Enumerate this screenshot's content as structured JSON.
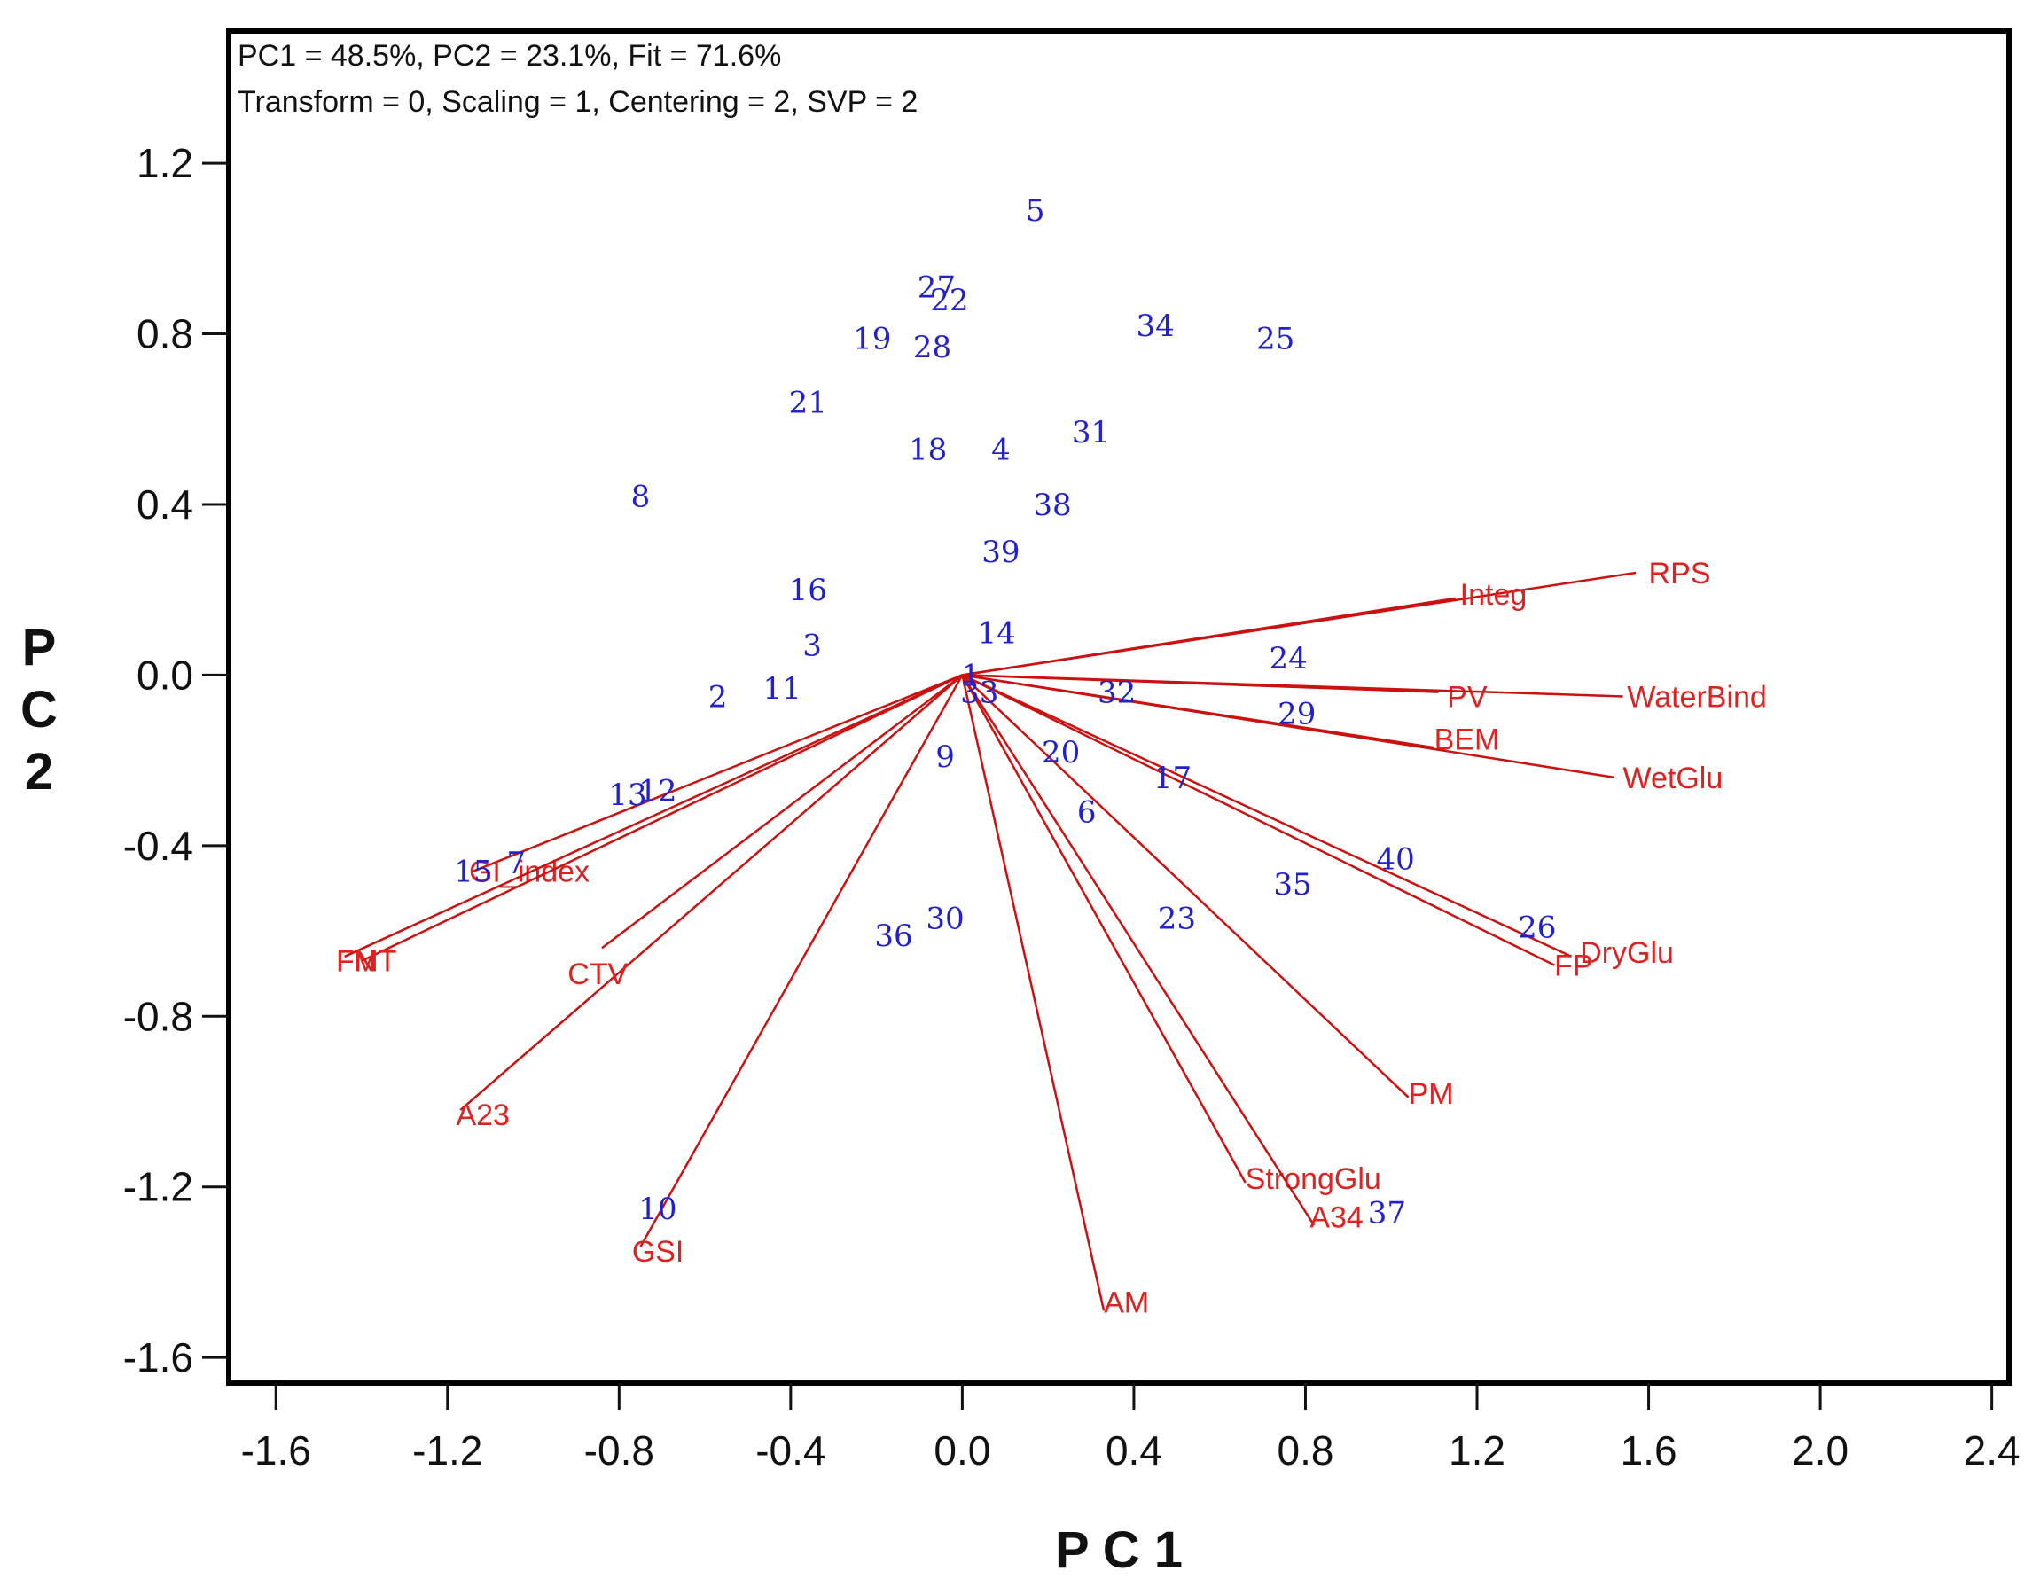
{
  "chart_data": {
    "type": "scatter",
    "subtype": "biplot",
    "header": [
      "PC1 = 48.5%, PC2 = 23.1%, Fit = 71.6%",
      "Transform = 0, Scaling = 1, Centering = 2, SVP = 2"
    ],
    "xlabel": "P C 1",
    "ylabel": [
      "P",
      "C",
      "2"
    ],
    "xlim": [
      -1.71,
      2.44
    ],
    "ylim": [
      -1.66,
      1.51
    ],
    "xticks": [
      -1.6,
      -1.2,
      -0.8,
      -0.4,
      0.0,
      0.4,
      0.8,
      1.2,
      1.6,
      2.0,
      2.4
    ],
    "yticks": [
      1.2,
      0.8,
      0.4,
      0.0,
      -0.4,
      -0.8,
      -1.2,
      -1.6
    ],
    "xtick_labels": [
      "-1.6",
      "-1.2",
      "-0.8",
      "-0.4",
      "0.0",
      "0.4",
      "0.8",
      "1.2",
      "1.6",
      "2.0",
      "2.4"
    ],
    "ytick_labels": [
      "1.2",
      "0.8",
      "0.4",
      "0.0",
      "-0.4",
      "-0.8",
      "-1.2",
      "-1.6"
    ],
    "colors": {
      "observations": "#2222cc",
      "vectors": "#cc1111",
      "variable_labels": "#dd2222",
      "frame": "#000000"
    },
    "observations": [
      {
        "label": "1",
        "x": 0.02,
        "y": 0.0
      },
      {
        "label": "2",
        "x": -0.57,
        "y": -0.05
      },
      {
        "label": "3",
        "x": -0.35,
        "y": 0.07
      },
      {
        "label": "4",
        "x": 0.09,
        "y": 0.53
      },
      {
        "label": "5",
        "x": 0.17,
        "y": 1.09
      },
      {
        "label": "6",
        "x": 0.29,
        "y": -0.32
      },
      {
        "label": "7",
        "x": -1.04,
        "y": -0.44
      },
      {
        "label": "8",
        "x": -0.75,
        "y": 0.42
      },
      {
        "label": "9",
        "x": -0.04,
        "y": -0.19
      },
      {
        "label": "10",
        "x": -0.71,
        "y": -1.25
      },
      {
        "label": "11",
        "x": -0.42,
        "y": -0.03
      },
      {
        "label": "12",
        "x": -0.71,
        "y": -0.27
      },
      {
        "label": "13",
        "x": -0.78,
        "y": -0.28
      },
      {
        "label": "14",
        "x": 0.08,
        "y": 0.1
      },
      {
        "label": "15",
        "x": -1.14,
        "y": -0.46
      },
      {
        "label": "16",
        "x": -0.36,
        "y": 0.2
      },
      {
        "label": "17",
        "x": 0.49,
        "y": -0.24
      },
      {
        "label": "18",
        "x": -0.08,
        "y": 0.53
      },
      {
        "label": "19",
        "x": -0.21,
        "y": 0.79
      },
      {
        "label": "20",
        "x": 0.23,
        "y": -0.18
      },
      {
        "label": "21",
        "x": -0.36,
        "y": 0.64
      },
      {
        "label": "22",
        "x": -0.03,
        "y": 0.88
      },
      {
        "label": "23",
        "x": 0.5,
        "y": -0.57
      },
      {
        "label": "24",
        "x": 0.76,
        "y": 0.04
      },
      {
        "label": "25",
        "x": 0.73,
        "y": 0.79
      },
      {
        "label": "26",
        "x": 1.34,
        "y": -0.59
      },
      {
        "label": "27",
        "x": -0.06,
        "y": 0.91
      },
      {
        "label": "28",
        "x": -0.07,
        "y": 0.77
      },
      {
        "label": "29",
        "x": 0.78,
        "y": -0.09
      },
      {
        "label": "30",
        "x": -0.04,
        "y": -0.57
      },
      {
        "label": "31",
        "x": 0.3,
        "y": 0.57
      },
      {
        "label": "32",
        "x": 0.36,
        "y": -0.04
      },
      {
        "label": "33",
        "x": 0.04,
        "y": -0.04
      },
      {
        "label": "34",
        "x": 0.45,
        "y": 0.82
      },
      {
        "label": "35",
        "x": 0.77,
        "y": -0.49
      },
      {
        "label": "36",
        "x": -0.16,
        "y": -0.61
      },
      {
        "label": "37",
        "x": 0.99,
        "y": -1.26
      },
      {
        "label": "38",
        "x": 0.21,
        "y": 0.4
      },
      {
        "label": "39",
        "x": 0.09,
        "y": 0.29
      },
      {
        "label": "40",
        "x": 1.01,
        "y": -0.43
      }
    ],
    "vectors": [
      {
        "label": "RPS",
        "x": 1.57,
        "y": 0.24,
        "lx": 1.6,
        "ly": 0.24
      },
      {
        "label": "Integ",
        "x": 1.15,
        "y": 0.18,
        "lx": 1.16,
        "ly": 0.19
      },
      {
        "label": "PV",
        "x": 1.11,
        "y": -0.04,
        "lx": 1.13,
        "ly": -0.05
      },
      {
        "label": "WaterBind",
        "x": 1.54,
        "y": -0.05,
        "lx": 1.55,
        "ly": -0.05
      },
      {
        "label": "BEM",
        "x": 1.1,
        "y": -0.17,
        "lx": 1.1,
        "ly": -0.15
      },
      {
        "label": "WetGlu",
        "x": 1.52,
        "y": -0.24,
        "lx": 1.54,
        "ly": -0.24
      },
      {
        "label": "DryGlu",
        "x": 1.42,
        "y": -0.66,
        "lx": 1.44,
        "ly": -0.65
      },
      {
        "label": "FP",
        "x": 1.38,
        "y": -0.68,
        "lx": 1.38,
        "ly": -0.68
      },
      {
        "label": "PM",
        "x": 1.04,
        "y": -0.99,
        "lx": 1.04,
        "ly": -0.98
      },
      {
        "label": "StrongGlu",
        "x": 0.66,
        "y": -1.19,
        "lx": 0.66,
        "ly": -1.18
      },
      {
        "label": "A34",
        "x": 0.82,
        "y": -1.29,
        "lx": 0.81,
        "ly": -1.27
      },
      {
        "label": "AM",
        "x": 0.33,
        "y": -1.49,
        "lx": 0.33,
        "ly": -1.47
      },
      {
        "label": "GSI",
        "x": -0.75,
        "y": -1.34,
        "lx": -0.77,
        "ly": -1.35
      },
      {
        "label": "A23",
        "x": -1.17,
        "y": -1.02,
        "lx": -1.18,
        "ly": -1.03
      },
      {
        "label": "CTV",
        "x": -0.84,
        "y": -0.64,
        "lx": -0.92,
        "ly": -0.7
      },
      {
        "label": "GI_index",
        "x": -1.14,
        "y": -0.46,
        "lx": -1.15,
        "ly": -0.46
      },
      {
        "label": "FN",
        "x": -1.44,
        "y": -0.66,
        "lx": -1.46,
        "ly": -0.67
      },
      {
        "label": "MT",
        "x": -1.4,
        "y": -0.67,
        "lx": -1.42,
        "ly": -0.67
      }
    ]
  }
}
